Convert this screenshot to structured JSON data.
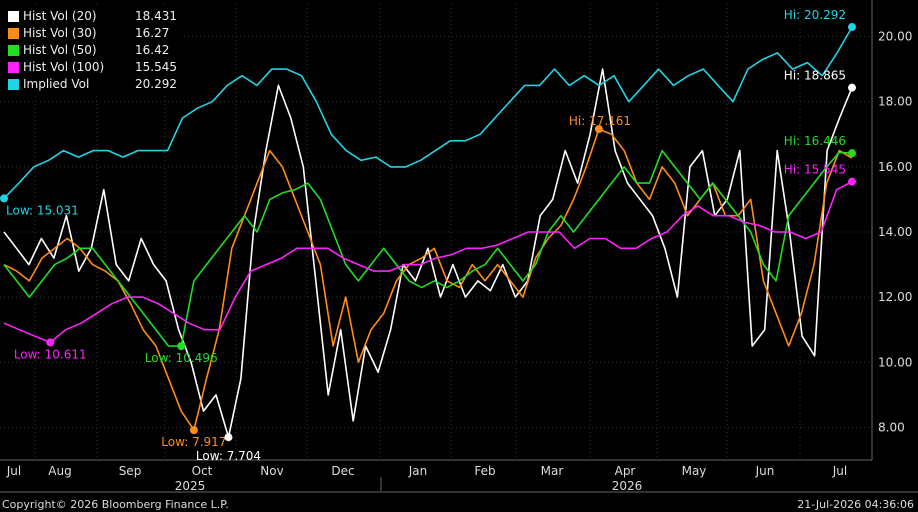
{
  "chart_data": {
    "type": "line",
    "y_axis": {
      "min": 7,
      "max": 21,
      "ticks": [
        8.0,
        10.0,
        12.0,
        14.0,
        16.0,
        18.0,
        20.0
      ],
      "position": "right"
    },
    "x_axis": {
      "months": [
        "Jul",
        "Aug",
        "Sep",
        "Oct",
        "Nov",
        "Dec",
        "Jan",
        "Feb",
        "Mar",
        "Apr",
        "May",
        "Jun",
        "Jul"
      ],
      "years": [
        "2025",
        "2026"
      ]
    },
    "series": [
      {
        "name": "Hist Vol (20)",
        "last": "18.431",
        "color": "#ffffff",
        "values": [
          14.0,
          13.5,
          13.0,
          13.8,
          13.2,
          14.5,
          12.8,
          13.5,
          15.3,
          13.0,
          12.5,
          13.8,
          13.0,
          12.5,
          11.0,
          10.0,
          8.5,
          9.0,
          7.7,
          9.5,
          14.0,
          16.5,
          18.5,
          17.5,
          16.0,
          12.5,
          9.0,
          11.0,
          8.2,
          10.5,
          9.7,
          11.0,
          13.0,
          12.5,
          13.5,
          12.0,
          13.0,
          12.0,
          12.5,
          12.2,
          13.0,
          12.0,
          12.5,
          14.5,
          15.0,
          16.5,
          15.5,
          17.0,
          19.0,
          16.5,
          15.5,
          15.0,
          14.5,
          13.5,
          12.0,
          16.0,
          16.5,
          14.5,
          15.0,
          16.5,
          10.5,
          11.0,
          16.5,
          14.0,
          10.8,
          10.2,
          16.5,
          17.5,
          18.431
        ]
      },
      {
        "name": "Hist Vol (30)",
        "last": "16.27",
        "color": "#ff8c1a",
        "values": [
          13.0,
          12.8,
          12.5,
          13.2,
          13.5,
          13.8,
          13.5,
          13.0,
          12.8,
          12.5,
          11.8,
          11.0,
          10.5,
          9.5,
          8.5,
          7.917,
          9.5,
          11.0,
          13.5,
          14.5,
          15.5,
          16.5,
          16.0,
          15.0,
          14.0,
          13.0,
          10.5,
          12.0,
          10.0,
          11.0,
          11.5,
          12.5,
          13.0,
          13.2,
          13.5,
          12.5,
          12.3,
          13.0,
          12.5,
          13.0,
          12.5,
          12.0,
          13.2,
          13.8,
          14.2,
          15.0,
          16.0,
          17.161,
          17.0,
          16.5,
          15.5,
          15.0,
          16.0,
          15.5,
          14.5,
          15.0,
          15.5,
          14.5,
          14.5,
          15.0,
          12.5,
          11.5,
          10.5,
          11.5,
          13.0,
          15.5,
          16.5,
          16.27
        ]
      },
      {
        "name": "Hist Vol (50)",
        "last": "16.42",
        "color": "#22dd22",
        "values": [
          13.0,
          12.5,
          12.0,
          12.5,
          13.0,
          13.2,
          13.5,
          13.5,
          13.0,
          12.5,
          12.0,
          11.5,
          11.0,
          10.5,
          10.496,
          12.5,
          13.0,
          13.5,
          14.0,
          14.5,
          14.0,
          15.0,
          15.2,
          15.3,
          15.5,
          15.0,
          14.0,
          13.0,
          12.5,
          13.0,
          13.5,
          13.0,
          12.5,
          12.3,
          12.5,
          12.3,
          12.5,
          12.8,
          13.0,
          13.5,
          13.0,
          12.5,
          13.0,
          14.0,
          14.5,
          14.0,
          14.5,
          15.0,
          15.5,
          16.0,
          15.5,
          15.5,
          16.5,
          16.0,
          15.5,
          15.0,
          15.5,
          15.0,
          14.5,
          14.0,
          13.0,
          12.5,
          14.5,
          15.0,
          15.5,
          16.0,
          16.446,
          16.42
        ]
      },
      {
        "name": "Hist Vol (100)",
        "last": "15.545",
        "color": "#ff22ff",
        "values": [
          11.2,
          11.0,
          10.8,
          10.611,
          11.0,
          11.2,
          11.5,
          11.8,
          12.0,
          12.0,
          11.8,
          11.5,
          11.2,
          11.0,
          11.0,
          12.0,
          12.8,
          13.0,
          13.2,
          13.5,
          13.5,
          13.5,
          13.2,
          13.0,
          12.8,
          12.8,
          13.0,
          13.0,
          13.2,
          13.3,
          13.5,
          13.5,
          13.6,
          13.8,
          14.0,
          14.0,
          14.0,
          13.5,
          13.8,
          13.8,
          13.5,
          13.5,
          13.8,
          14.0,
          14.5,
          14.8,
          14.5,
          14.5,
          14.3,
          14.2,
          14.0,
          14.0,
          13.8,
          14.0,
          15.3,
          15.545
        ]
      },
      {
        "name": "Implied Vol",
        "last": "20.292",
        "color": "#22d3e6",
        "values": [
          15.031,
          15.5,
          16.0,
          16.2,
          16.5,
          16.3,
          16.5,
          16.5,
          16.3,
          16.5,
          16.5,
          16.5,
          17.5,
          17.8,
          18.0,
          18.5,
          18.8,
          18.5,
          19.0,
          19.0,
          18.8,
          18.0,
          17.0,
          16.5,
          16.2,
          16.3,
          16.0,
          16.0,
          16.2,
          16.5,
          16.8,
          16.8,
          17.0,
          17.5,
          18.0,
          18.5,
          18.5,
          19.0,
          18.5,
          18.8,
          18.5,
          18.8,
          18.0,
          18.5,
          19.0,
          18.5,
          18.8,
          19.0,
          18.5,
          18.0,
          19.0,
          19.3,
          19.5,
          19.0,
          19.2,
          18.8,
          19.5,
          20.292
        ]
      }
    ],
    "annotations": [
      {
        "text": "Hi: 20.292",
        "series": 4,
        "at": "last"
      },
      {
        "text": "Hi: 18.865",
        "series": 0,
        "at": "last"
      },
      {
        "text": "Hi: 17.161",
        "series": 1,
        "at": "peak"
      },
      {
        "text": "Hi: 16.446",
        "series": 2,
        "at": "last"
      },
      {
        "text": "Hi: 15.545",
        "series": 3,
        "at": "last"
      },
      {
        "text": "Low: 15.031",
        "series": 4,
        "at": "first"
      },
      {
        "text": "Low: 10.611",
        "series": 3,
        "at": "min"
      },
      {
        "text": "Low: 10.496",
        "series": 2,
        "at": "min"
      },
      {
        "text": "Low: 7.917",
        "series": 1,
        "at": "min"
      },
      {
        "text": "Low: 7.704",
        "series": 0,
        "at": "min"
      }
    ]
  },
  "footer": {
    "copyright": "Copyright© 2026 Bloomberg Finance L.P.",
    "timestamp": "21-Jul-2026 04:36:06"
  }
}
